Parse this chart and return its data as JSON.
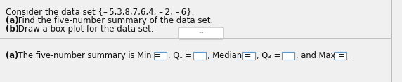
{
  "line1": "Consider the data set {– 5,3,8,7,6,4, – 2, – 6}.",
  "line2a_bold": "(a)",
  "line2b": " Find the five-number summary of the data set.",
  "line3a_bold": "(b)",
  "line3b": " Draw a box plot for the data set.",
  "bot_a_bold": "(a)",
  "bot_text": " The five-number summary is Min =",
  "q1_text": ", Q₁ =",
  "median_text": ", Median =",
  "q3_text": ", Q₃ =",
  "max_text": ", and Max =",
  "end_text": ".",
  "dots": "···",
  "bg_color": "#f0f0f0",
  "white": "#ffffff",
  "text_color": "#111111",
  "box_border": "#5b9bd5",
  "divider_color": "#c0c0c0",
  "right_border": "#b0b0b0",
  "font_size_top": 8.5,
  "font_size_bot": 8.3,
  "figsize": [
    5.72,
    1.17
  ],
  "dpi": 100
}
